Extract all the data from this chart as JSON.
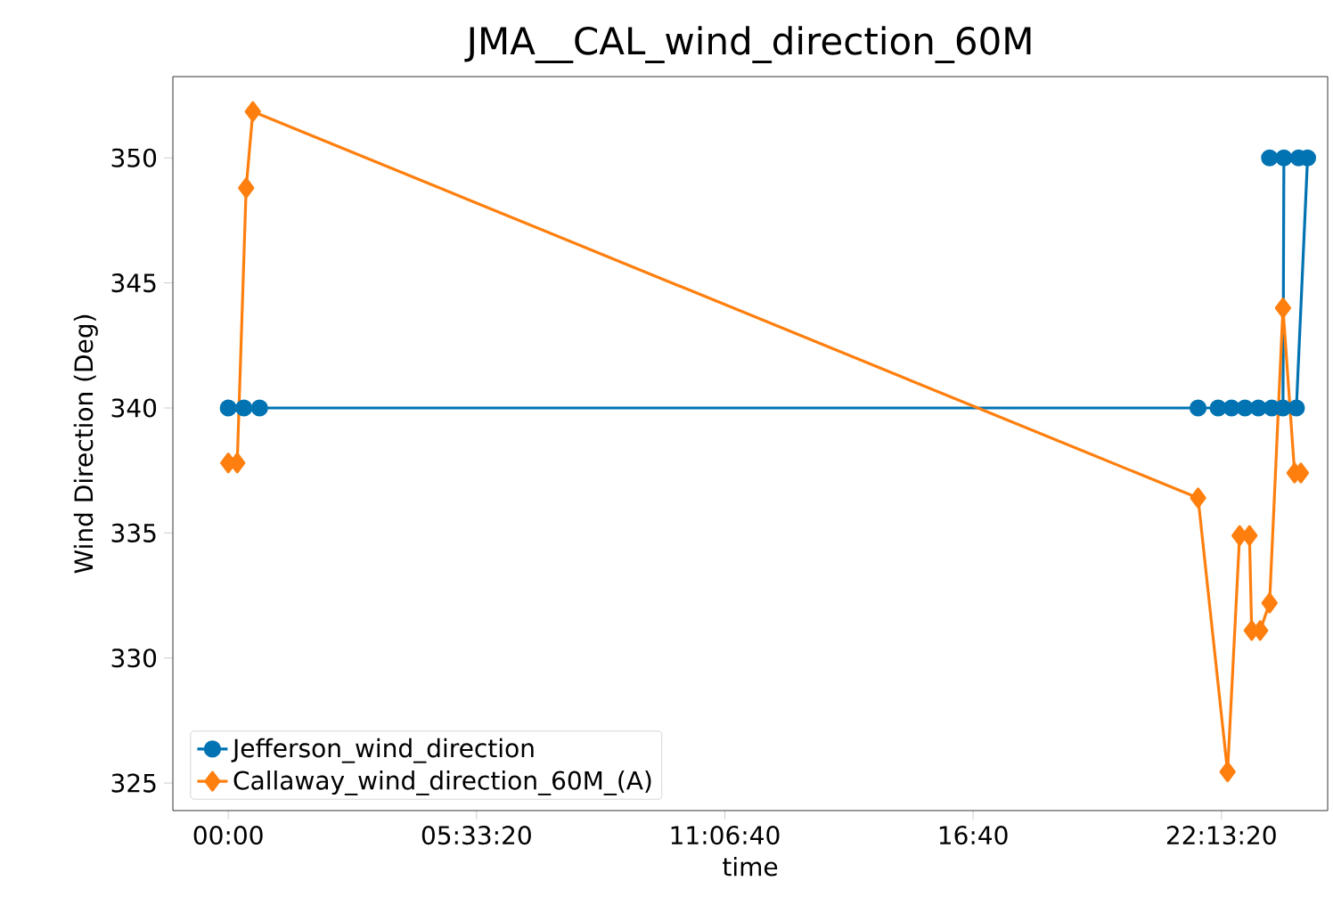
{
  "chart_data": {
    "type": "line",
    "title": "JMA__CAL_wind_direction_60M",
    "xlabel": "time",
    "ylabel": "Wind Direction (Deg)",
    "xlim": [
      -1.24,
      24.6
    ],
    "ylim": [
      323.9,
      353.25
    ],
    "xticks": [
      {
        "value": 0,
        "label": "00:00"
      },
      {
        "value": 5.555556,
        "label": "05:33:20"
      },
      {
        "value": 11.111111,
        "label": "11:06:40"
      },
      {
        "value": 16.666667,
        "label": "16:40"
      },
      {
        "value": 22.222222,
        "label": "22:13:20"
      }
    ],
    "yticks": [
      325,
      330,
      335,
      340,
      345,
      350
    ],
    "legend": "bottom left",
    "grid": false,
    "series": [
      {
        "name": "Jefferson_wind_direction",
        "color": "#0173b2",
        "marker": "circle",
        "x": [
          0.0,
          0.35,
          0.7,
          21.7,
          22.15,
          22.45,
          22.75,
          23.05,
          23.35,
          23.6,
          23.62,
          23.3,
          23.95,
          24.15,
          23.9
        ],
        "values": [
          340,
          340,
          340,
          340,
          340,
          340,
          340,
          340,
          340,
          340,
          350,
          350,
          350,
          350,
          340
        ]
      },
      {
        "name": "Callaway_wind_direction_60M_(A)",
        "color": "#ff7f0e",
        "marker": "diamond",
        "x": [
          0.0,
          0.2,
          0.4,
          0.55,
          21.7,
          22.36,
          22.63,
          22.85,
          22.9,
          23.09,
          23.3,
          23.6,
          23.86,
          24.0
        ],
        "values": [
          337.8,
          337.8,
          348.8,
          351.85,
          336.4,
          325.45,
          334.9,
          334.9,
          331.1,
          331.1,
          332.2,
          344.0,
          337.4,
          337.4
        ]
      }
    ]
  }
}
